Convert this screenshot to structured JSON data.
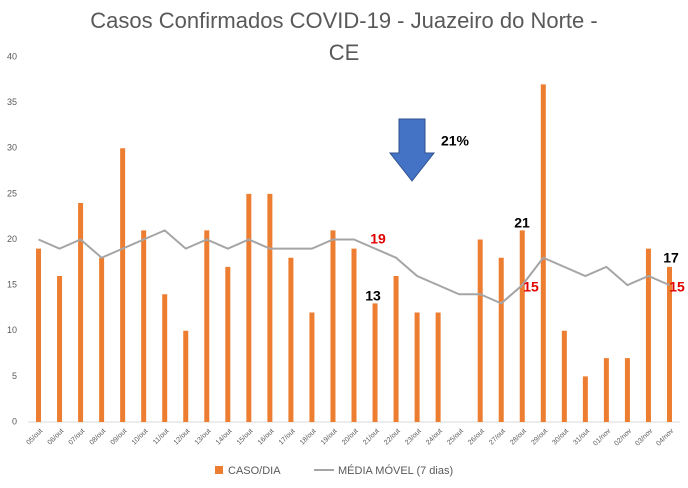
{
  "chart_data": {
    "type": "bar_line",
    "title": [
      "Casos Confirmados COVID-19 - Juazeiro do Norte -",
      "CE"
    ],
    "categories": [
      "05/out",
      "06/out",
      "07/out",
      "08/out",
      "09/out",
      "10/out",
      "11/out",
      "12/out",
      "13/out",
      "14/out",
      "15/out",
      "16/out",
      "17/out",
      "18/out",
      "19/out",
      "20/out",
      "21/out",
      "22/out",
      "23/out",
      "24/out",
      "25/out",
      "26/out",
      "27/out",
      "28/out",
      "29/out",
      "30/out",
      "31/out",
      "01/nov",
      "02/nov",
      "03/nov",
      "04/nov"
    ],
    "series": [
      {
        "name": "CASO/DIA",
        "type": "bar",
        "color": "#ed7d31",
        "values": [
          19,
          16,
          24,
          18,
          30,
          21,
          14,
          10,
          21,
          17,
          25,
          25,
          18,
          12,
          21,
          19,
          13,
          16,
          12,
          12,
          0,
          20,
          18,
          21,
          37,
          10,
          5,
          7,
          7,
          19,
          17
        ]
      },
      {
        "name": "MÉDIA MÓVEL (7 dias)",
        "type": "line",
        "color": "#a5a5a5",
        "values": [
          20,
          19,
          20,
          18,
          19,
          20,
          21,
          19,
          20,
          19,
          20,
          19,
          19,
          19,
          20,
          20,
          19,
          18,
          16,
          15,
          14,
          14,
          13,
          15,
          18,
          17,
          16,
          17,
          15,
          16,
          15
        ]
      }
    ],
    "ylim": [
      0,
      40
    ],
    "yticks": [
      0,
      5,
      10,
      15,
      20,
      25,
      30,
      35,
      40
    ],
    "annotations": [
      {
        "text": "21%",
        "color": "#000000"
      },
      {
        "text": "19",
        "color": "#e00000"
      },
      {
        "text": "13",
        "color": "#000000"
      },
      {
        "text": "21",
        "color": "#000000"
      },
      {
        "text": "15",
        "color": "#e00000"
      },
      {
        "text": "17",
        "color": "#000000"
      },
      {
        "text": "15",
        "color": "#e00000"
      }
    ]
  }
}
